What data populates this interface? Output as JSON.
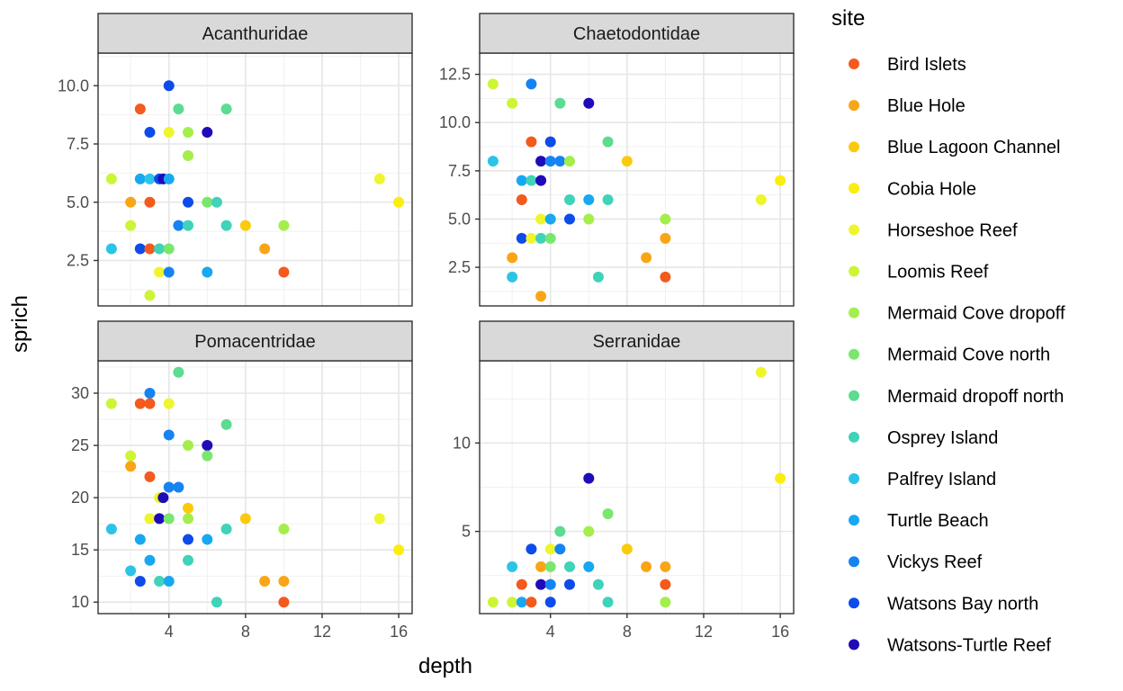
{
  "chart_data": {
    "type": "scatter",
    "xlabel": "depth",
    "ylabel": "sprich",
    "legend": {
      "title": "site",
      "position": "right",
      "entries": [
        {
          "name": "Bird Islets",
          "color": "#F45A1C"
        },
        {
          "name": "Blue Hole",
          "color": "#FAA516"
        },
        {
          "name": "Blue Lagoon Channel",
          "color": "#F9CB0C"
        },
        {
          "name": "Cobia Hole",
          "color": "#FBED0E"
        },
        {
          "name": "Horseshoe Reef",
          "color": "#EFF52B"
        },
        {
          "name": "Loomis Reef",
          "color": "#CDF536"
        },
        {
          "name": "Mermaid Cove dropoff",
          "color": "#A4EE4C"
        },
        {
          "name": "Mermaid Cove north",
          "color": "#79E76E"
        },
        {
          "name": "Mermaid dropoff north",
          "color": "#5BDC90"
        },
        {
          "name": "Osprey Island",
          "color": "#3FD3B9"
        },
        {
          "name": "Palfrey Island",
          "color": "#2CC4E6"
        },
        {
          "name": "Turtle Beach",
          "color": "#17A8F1"
        },
        {
          "name": "Vickys Reef",
          "color": "#1683F2"
        },
        {
          "name": "Watsons Bay north",
          "color": "#0D4BEB"
        },
        {
          "name": "Watsons-Turtle Reef",
          "color": "#1F0BB8"
        }
      ]
    },
    "grid": true,
    "x_ticks": [
      4,
      8,
      12,
      16
    ],
    "xlim": [
      0.3,
      16.7
    ],
    "panels": [
      {
        "title": "Acanthuridae",
        "ylim": [
          0.55,
          11.4
        ],
        "y_ticks": [
          "2.5",
          "5.0",
          "7.5",
          "10.0"
        ],
        "points": [
          {
            "x": 4,
            "y": 10,
            "site": "Watsons Bay north"
          },
          {
            "x": 2.5,
            "y": 9,
            "site": "Bird Islets"
          },
          {
            "x": 4.5,
            "y": 9,
            "site": "Mermaid dropoff north"
          },
          {
            "x": 7,
            "y": 9,
            "site": "Mermaid dropoff north"
          },
          {
            "x": 3,
            "y": 8,
            "site": "Watsons Bay north"
          },
          {
            "x": 4,
            "y": 8,
            "site": "Horseshoe Reef"
          },
          {
            "x": 5,
            "y": 8,
            "site": "Mermaid Cove dropoff"
          },
          {
            "x": 6,
            "y": 8,
            "site": "Watsons-Turtle Reef"
          },
          {
            "x": 5,
            "y": 7,
            "site": "Mermaid Cove dropoff"
          },
          {
            "x": 1,
            "y": 6,
            "site": "Loomis Reef"
          },
          {
            "x": 2.5,
            "y": 6,
            "site": "Turtle Beach"
          },
          {
            "x": 3,
            "y": 6,
            "site": "Palfrey Island"
          },
          {
            "x": 3.5,
            "y": 6,
            "site": "Watsons Bay north"
          },
          {
            "x": 3.7,
            "y": 6,
            "site": "Watsons-Turtle Reef"
          },
          {
            "x": 4,
            "y": 6,
            "site": "Turtle Beach"
          },
          {
            "x": 15,
            "y": 6,
            "site": "Horseshoe Reef"
          },
          {
            "x": 2,
            "y": 5,
            "site": "Blue Hole"
          },
          {
            "x": 3,
            "y": 5,
            "site": "Bird Islets"
          },
          {
            "x": 5,
            "y": 5,
            "site": "Watsons Bay north"
          },
          {
            "x": 6,
            "y": 5,
            "site": "Mermaid Cove north"
          },
          {
            "x": 6.5,
            "y": 5,
            "site": "Osprey Island"
          },
          {
            "x": 16,
            "y": 5,
            "site": "Cobia Hole"
          },
          {
            "x": 2,
            "y": 4,
            "site": "Loomis Reef"
          },
          {
            "x": 4.5,
            "y": 4,
            "site": "Vickys Reef"
          },
          {
            "x": 5,
            "y": 4,
            "site": "Osprey Island"
          },
          {
            "x": 7,
            "y": 4,
            "site": "Osprey Island"
          },
          {
            "x": 8,
            "y": 4,
            "site": "Blue Lagoon Channel"
          },
          {
            "x": 10,
            "y": 4,
            "site": "Mermaid Cove dropoff"
          },
          {
            "x": 1,
            "y": 3,
            "site": "Palfrey Island"
          },
          {
            "x": 2.5,
            "y": 3,
            "site": "Watsons Bay north"
          },
          {
            "x": 3,
            "y": 3,
            "site": "Bird Islets"
          },
          {
            "x": 3.5,
            "y": 3,
            "site": "Osprey Island"
          },
          {
            "x": 4,
            "y": 3,
            "site": "Mermaid Cove north"
          },
          {
            "x": 9,
            "y": 3,
            "site": "Blue Hole"
          },
          {
            "x": 3.5,
            "y": 2,
            "site": "Horseshoe Reef"
          },
          {
            "x": 4,
            "y": 2,
            "site": "Vickys Reef"
          },
          {
            "x": 6,
            "y": 2,
            "site": "Turtle Beach"
          },
          {
            "x": 10,
            "y": 2,
            "site": "Bird Islets"
          },
          {
            "x": 3,
            "y": 1,
            "site": "Loomis Reef"
          }
        ]
      },
      {
        "title": "Chaetodontidae",
        "ylim": [
          0.5,
          13.6
        ],
        "y_ticks": [
          "2.5",
          "5.0",
          "7.5",
          "10.0",
          "12.5"
        ],
        "points": [
          {
            "x": 1,
            "y": 12,
            "site": "Loomis Reef"
          },
          {
            "x": 3,
            "y": 12,
            "site": "Vickys Reef"
          },
          {
            "x": 2,
            "y": 11,
            "site": "Loomis Reef"
          },
          {
            "x": 4.5,
            "y": 11,
            "site": "Mermaid dropoff north"
          },
          {
            "x": 6,
            "y": 11,
            "site": "Watsons-Turtle Reef"
          },
          {
            "x": 3,
            "y": 9,
            "site": "Bird Islets"
          },
          {
            "x": 4,
            "y": 9,
            "site": "Watsons Bay north"
          },
          {
            "x": 7,
            "y": 9,
            "site": "Mermaid dropoff north"
          },
          {
            "x": 1,
            "y": 8,
            "site": "Palfrey Island"
          },
          {
            "x": 3.5,
            "y": 8,
            "site": "Watsons-Turtle Reef"
          },
          {
            "x": 4,
            "y": 8,
            "site": "Vickys Reef"
          },
          {
            "x": 4.5,
            "y": 8,
            "site": "Vickys Reef"
          },
          {
            "x": 5,
            "y": 8,
            "site": "Mermaid Cove dropoff"
          },
          {
            "x": 8,
            "y": 8,
            "site": "Blue Lagoon Channel"
          },
          {
            "x": 2.5,
            "y": 7,
            "site": "Turtle Beach"
          },
          {
            "x": 3,
            "y": 7,
            "site": "Osprey Island"
          },
          {
            "x": 3.5,
            "y": 7,
            "site": "Watsons-Turtle Reef"
          },
          {
            "x": 16,
            "y": 7,
            "site": "Cobia Hole"
          },
          {
            "x": 2.5,
            "y": 6,
            "site": "Bird Islets"
          },
          {
            "x": 5,
            "y": 6,
            "site": "Osprey Island"
          },
          {
            "x": 6,
            "y": 6,
            "site": "Turtle Beach"
          },
          {
            "x": 7,
            "y": 6,
            "site": "Osprey Island"
          },
          {
            "x": 15,
            "y": 6,
            "site": "Horseshoe Reef"
          },
          {
            "x": 3.5,
            "y": 5,
            "site": "Horseshoe Reef"
          },
          {
            "x": 4,
            "y": 5,
            "site": "Turtle Beach"
          },
          {
            "x": 5,
            "y": 5,
            "site": "Watsons Bay north"
          },
          {
            "x": 6,
            "y": 5,
            "site": "Mermaid Cove dropoff"
          },
          {
            "x": 10,
            "y": 5,
            "site": "Mermaid Cove dropoff"
          },
          {
            "x": 2.5,
            "y": 4,
            "site": "Watsons Bay north"
          },
          {
            "x": 3,
            "y": 4,
            "site": "Horseshoe Reef"
          },
          {
            "x": 3.5,
            "y": 4,
            "site": "Osprey Island"
          },
          {
            "x": 4,
            "y": 4,
            "site": "Mermaid Cove north"
          },
          {
            "x": 10,
            "y": 4,
            "site": "Blue Hole"
          },
          {
            "x": 2,
            "y": 3,
            "site": "Blue Hole"
          },
          {
            "x": 9,
            "y": 3,
            "site": "Blue Hole"
          },
          {
            "x": 2,
            "y": 2,
            "site": "Palfrey Island"
          },
          {
            "x": 6.5,
            "y": 2,
            "site": "Osprey Island"
          },
          {
            "x": 10,
            "y": 2,
            "site": "Bird Islets"
          },
          {
            "x": 3.5,
            "y": 1,
            "site": "Blue Hole"
          }
        ]
      },
      {
        "title": "Pomacentridae",
        "ylim": [
          8.9,
          33.1
        ],
        "y_ticks": [
          "10",
          "15",
          "20",
          "25",
          "30"
        ],
        "points": [
          {
            "x": 4.5,
            "y": 32,
            "site": "Mermaid dropoff north"
          },
          {
            "x": 3,
            "y": 30,
            "site": "Vickys Reef"
          },
          {
            "x": 1,
            "y": 29,
            "site": "Loomis Reef"
          },
          {
            "x": 2.5,
            "y": 29,
            "site": "Bird Islets"
          },
          {
            "x": 3,
            "y": 29,
            "site": "Bird Islets"
          },
          {
            "x": 4,
            "y": 29,
            "site": "Horseshoe Reef"
          },
          {
            "x": 7,
            "y": 27,
            "site": "Mermaid dropoff north"
          },
          {
            "x": 4,
            "y": 26,
            "site": "Vickys Reef"
          },
          {
            "x": 5,
            "y": 25,
            "site": "Mermaid Cove dropoff"
          },
          {
            "x": 6,
            "y": 25,
            "site": "Watsons-Turtle Reef"
          },
          {
            "x": 2,
            "y": 24,
            "site": "Loomis Reef"
          },
          {
            "x": 6,
            "y": 24,
            "site": "Mermaid Cove north"
          },
          {
            "x": 2,
            "y": 23,
            "site": "Blue Hole"
          },
          {
            "x": 3,
            "y": 22,
            "site": "Bird Islets"
          },
          {
            "x": 4,
            "y": 21,
            "site": "Vickys Reef"
          },
          {
            "x": 4.5,
            "y": 21,
            "site": "Vickys Reef"
          },
          {
            "x": 3.5,
            "y": 20,
            "site": "Horseshoe Reef"
          },
          {
            "x": 3.7,
            "y": 20,
            "site": "Watsons-Turtle Reef"
          },
          {
            "x": 5,
            "y": 19,
            "site": "Blue Lagoon Channel"
          },
          {
            "x": 3,
            "y": 18,
            "site": "Horseshoe Reef"
          },
          {
            "x": 3.5,
            "y": 18,
            "site": "Watsons-Turtle Reef"
          },
          {
            "x": 4,
            "y": 18,
            "site": "Mermaid Cove north"
          },
          {
            "x": 5,
            "y": 18,
            "site": "Mermaid Cove dropoff"
          },
          {
            "x": 8,
            "y": 18,
            "site": "Blue Lagoon Channel"
          },
          {
            "x": 15,
            "y": 18,
            "site": "Horseshoe Reef"
          },
          {
            "x": 1,
            "y": 17,
            "site": "Palfrey Island"
          },
          {
            "x": 7,
            "y": 17,
            "site": "Osprey Island"
          },
          {
            "x": 10,
            "y": 17,
            "site": "Mermaid Cove dropoff"
          },
          {
            "x": 2.5,
            "y": 16,
            "site": "Turtle Beach"
          },
          {
            "x": 5,
            "y": 16,
            "site": "Watsons Bay north"
          },
          {
            "x": 6,
            "y": 16,
            "site": "Turtle Beach"
          },
          {
            "x": 16,
            "y": 15,
            "site": "Cobia Hole"
          },
          {
            "x": 3,
            "y": 14,
            "site": "Turtle Beach"
          },
          {
            "x": 5,
            "y": 14,
            "site": "Osprey Island"
          },
          {
            "x": 2,
            "y": 13,
            "site": "Palfrey Island"
          },
          {
            "x": 2.5,
            "y": 12,
            "site": "Watsons Bay north"
          },
          {
            "x": 3.5,
            "y": 12,
            "site": "Osprey Island"
          },
          {
            "x": 4,
            "y": 12,
            "site": "Turtle Beach"
          },
          {
            "x": 9,
            "y": 12,
            "site": "Blue Hole"
          },
          {
            "x": 10,
            "y": 12,
            "site": "Blue Hole"
          },
          {
            "x": 6.5,
            "y": 10,
            "site": "Osprey Island"
          },
          {
            "x": 10,
            "y": 10,
            "site": "Bird Islets"
          }
        ]
      },
      {
        "title": "Serranidae",
        "ylim": [
          0.35,
          14.65
        ],
        "y_ticks": [
          "5",
          "10"
        ],
        "points": [
          {
            "x": 15,
            "y": 14,
            "site": "Horseshoe Reef"
          },
          {
            "x": 16,
            "y": 8,
            "site": "Cobia Hole"
          },
          {
            "x": 6,
            "y": 8,
            "site": "Watsons-Turtle Reef"
          },
          {
            "x": 7,
            "y": 6,
            "site": "Mermaid Cove north"
          },
          {
            "x": 4.5,
            "y": 5,
            "site": "Mermaid dropoff north"
          },
          {
            "x": 6,
            "y": 5,
            "site": "Mermaid Cove dropoff"
          },
          {
            "x": 3,
            "y": 4,
            "site": "Watsons Bay north"
          },
          {
            "x": 4,
            "y": 4,
            "site": "Horseshoe Reef"
          },
          {
            "x": 4.5,
            "y": 4,
            "site": "Vickys Reef"
          },
          {
            "x": 8,
            "y": 4,
            "site": "Blue Lagoon Channel"
          },
          {
            "x": 2,
            "y": 3,
            "site": "Palfrey Island"
          },
          {
            "x": 3.5,
            "y": 3,
            "site": "Blue Hole"
          },
          {
            "x": 4,
            "y": 3,
            "site": "Mermaid Cove north"
          },
          {
            "x": 5,
            "y": 3,
            "site": "Osprey Island"
          },
          {
            "x": 6,
            "y": 3,
            "site": "Turtle Beach"
          },
          {
            "x": 9,
            "y": 3,
            "site": "Blue Hole"
          },
          {
            "x": 10,
            "y": 3,
            "site": "Blue Hole"
          },
          {
            "x": 2.5,
            "y": 2,
            "site": "Bird Islets"
          },
          {
            "x": 3.5,
            "y": 2,
            "site": "Watsons-Turtle Reef"
          },
          {
            "x": 4,
            "y": 2,
            "site": "Vickys Reef"
          },
          {
            "x": 5,
            "y": 2,
            "site": "Watsons Bay north"
          },
          {
            "x": 6.5,
            "y": 2,
            "site": "Osprey Island"
          },
          {
            "x": 10,
            "y": 2,
            "site": "Bird Islets"
          },
          {
            "x": 1,
            "y": 1,
            "site": "Loomis Reef"
          },
          {
            "x": 2,
            "y": 1,
            "site": "Loomis Reef"
          },
          {
            "x": 2.5,
            "y": 1,
            "site": "Turtle Beach"
          },
          {
            "x": 3,
            "y": 1,
            "site": "Bird Islets"
          },
          {
            "x": 4,
            "y": 1,
            "site": "Watsons Bay north"
          },
          {
            "x": 7,
            "y": 1,
            "site": "Osprey Island"
          },
          {
            "x": 10,
            "y": 1,
            "site": "Mermaid Cove dropoff"
          }
        ]
      }
    ]
  }
}
